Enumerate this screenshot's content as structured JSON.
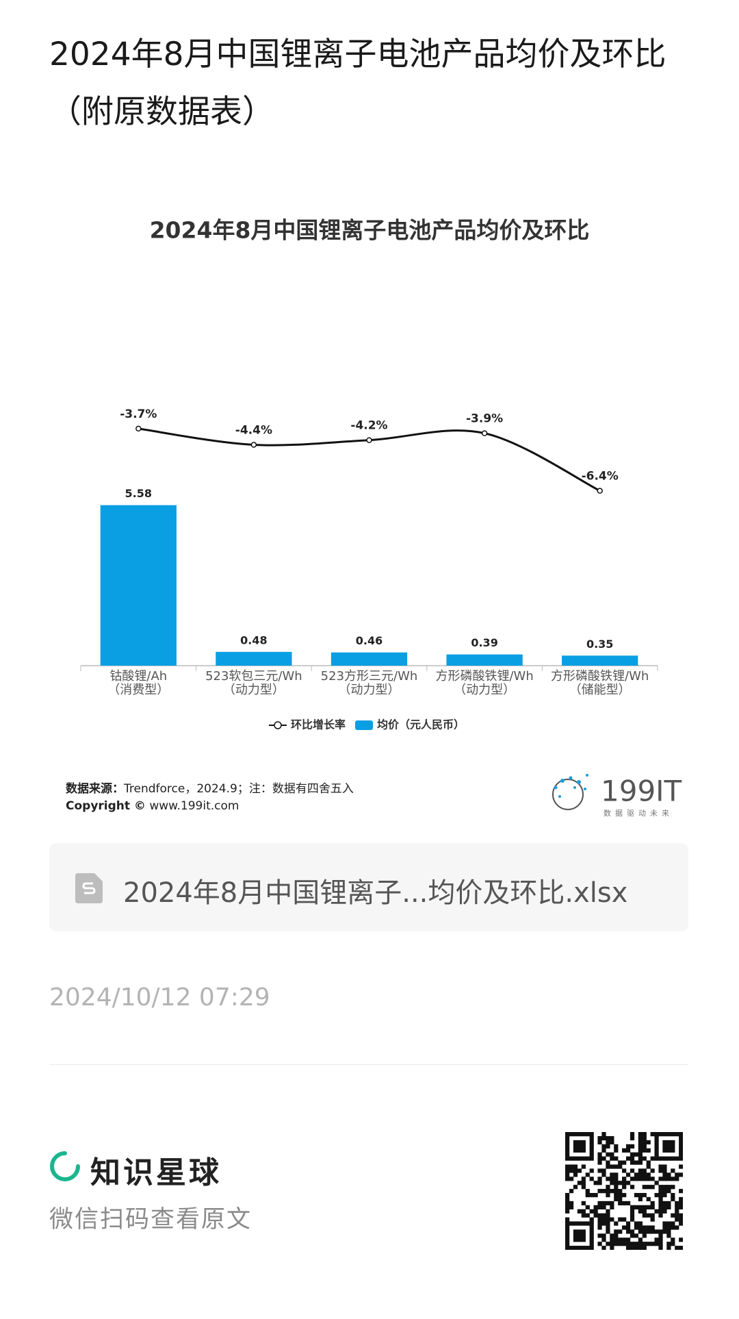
{
  "page_title": "2024年8月中国锂离子电池产品均价及环比（附原数据表）",
  "chart_data": {
    "type": "bar",
    "title": "2024年8月中国锂离子电池产品均价及环比",
    "categories": [
      [
        "钴酸锂/Ah",
        "（消费型）"
      ],
      [
        "523软包三元/Wh",
        "（动力型）"
      ],
      [
        "523方形三元/Wh",
        "（动力型）"
      ],
      [
        "方形磷酸铁锂/Wh",
        "（动力型）"
      ],
      [
        "方形磷酸铁锂/Wh",
        "（储能型）"
      ]
    ],
    "series": [
      {
        "name": "环比增长率",
        "type": "line",
        "axis": "y2",
        "color": "#111111",
        "values": [
          -3.7,
          -4.4,
          -4.2,
          -3.9,
          -6.4
        ],
        "value_labels": [
          "-3.7%",
          "-4.4%",
          "-4.2%",
          "-3.9%",
          "-6.4%"
        ]
      },
      {
        "name": "均价（元人民币）",
        "type": "bar",
        "color": "#0a9fe3",
        "values": [
          5.58,
          0.48,
          0.46,
          0.39,
          0.35
        ]
      }
    ],
    "ylim": [
      0,
      10
    ],
    "y2lim": [
      -14,
      -1.5
    ],
    "grid": false
  },
  "source": {
    "label": "数据来源：",
    "text": "Trendforce，2024.9；注：数据有四舍五入"
  },
  "copyright": {
    "label": "Copyright ©",
    "text": "www.199it.com"
  },
  "logo": {
    "name": "199IT",
    "slogan": "数据驱动未来"
  },
  "file": {
    "name": "2024年8月中国锂离子...均价及环比.xlsx"
  },
  "date": "2024/10/12 07:29",
  "footer": {
    "brand": "知识星球",
    "hint": "微信扫码查看原文"
  }
}
